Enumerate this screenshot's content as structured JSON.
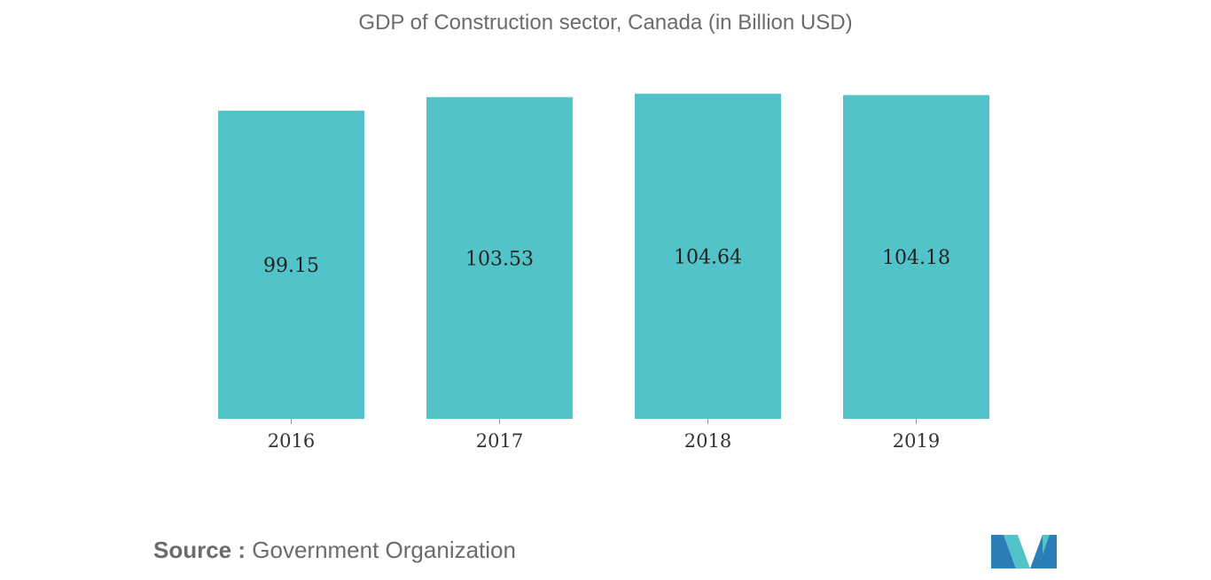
{
  "chart_data": {
    "type": "bar",
    "title": "GDP of Construction sector, Canada (in Billion USD)",
    "categories": [
      "2016",
      "2017",
      "2018",
      "2019"
    ],
    "values": [
      99.15,
      103.53,
      104.64,
      104.18
    ],
    "value_labels": [
      "99.15",
      "103.53",
      "104.64",
      "104.18"
    ],
    "xlabel": "",
    "ylabel": "",
    "ylim": [
      0,
      106
    ],
    "grid": false,
    "bar_color": "#52c3c9"
  },
  "source": {
    "prefix": "Source :",
    "text": "Government Organization"
  },
  "logo": {
    "icon": "mordor-intelligence-logo-icon",
    "colors": [
      "#2a7fb8",
      "#52c3c9"
    ]
  }
}
